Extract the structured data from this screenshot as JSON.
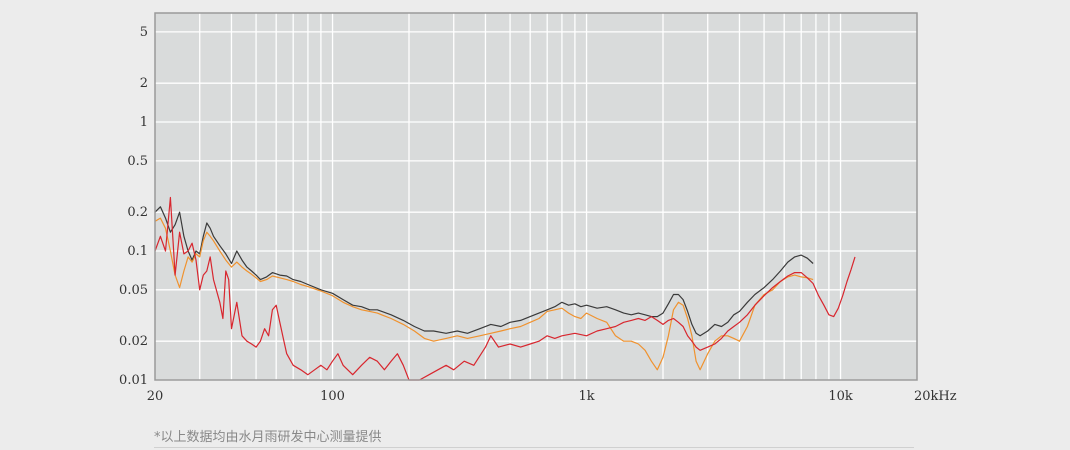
{
  "chart_data": {
    "type": "line",
    "title": "",
    "xlabel": "",
    "ylabel": "",
    "x_scale": "log",
    "y_scale": "log",
    "xlim": [
      20,
      20000
    ],
    "ylim": [
      0.01,
      7
    ],
    "grid": true,
    "x_ticks": [
      {
        "value": 20,
        "label": "20"
      },
      {
        "value": 100,
        "label": "100"
      },
      {
        "value": 1000,
        "label": "1k"
      },
      {
        "value": 10000,
        "label": "10k"
      },
      {
        "value": 20000,
        "label": "20kHz"
      }
    ],
    "y_ticks": [
      {
        "value": 5,
        "label": "5"
      },
      {
        "value": 2,
        "label": "2"
      },
      {
        "value": 1,
        "label": "1"
      },
      {
        "value": 0.5,
        "label": "0.5"
      },
      {
        "value": 0.2,
        "label": "0.2"
      },
      {
        "value": 0.1,
        "label": "0.1"
      },
      {
        "value": 0.05,
        "label": "0.05"
      },
      {
        "value": 0.02,
        "label": "0.02"
      },
      {
        "value": 0.01,
        "label": "0.01"
      }
    ],
    "series": [
      {
        "color": "#3a3a3a",
        "points": [
          [
            20,
            0.2
          ],
          [
            21,
            0.22
          ],
          [
            22,
            0.18
          ],
          [
            23,
            0.14
          ],
          [
            24,
            0.16
          ],
          [
            25,
            0.2
          ],
          [
            26,
            0.13
          ],
          [
            27,
            0.1
          ],
          [
            28,
            0.085
          ],
          [
            29,
            0.1
          ],
          [
            30,
            0.095
          ],
          [
            31,
            0.13
          ],
          [
            32,
            0.165
          ],
          [
            33,
            0.15
          ],
          [
            34,
            0.13
          ],
          [
            36,
            0.11
          ],
          [
            38,
            0.095
          ],
          [
            40,
            0.08
          ],
          [
            42,
            0.1
          ],
          [
            44,
            0.085
          ],
          [
            46,
            0.075
          ],
          [
            48,
            0.07
          ],
          [
            50,
            0.065
          ],
          [
            52,
            0.06
          ],
          [
            55,
            0.063
          ],
          [
            58,
            0.068
          ],
          [
            62,
            0.065
          ],
          [
            66,
            0.064
          ],
          [
            70,
            0.06
          ],
          [
            75,
            0.058
          ],
          [
            80,
            0.055
          ],
          [
            90,
            0.05
          ],
          [
            100,
            0.047
          ],
          [
            110,
            0.042
          ],
          [
            120,
            0.038
          ],
          [
            130,
            0.037
          ],
          [
            140,
            0.035
          ],
          [
            150,
            0.035
          ],
          [
            170,
            0.032
          ],
          [
            190,
            0.029
          ],
          [
            210,
            0.026
          ],
          [
            230,
            0.024
          ],
          [
            250,
            0.024
          ],
          [
            280,
            0.023
          ],
          [
            310,
            0.024
          ],
          [
            340,
            0.023
          ],
          [
            380,
            0.025
          ],
          [
            420,
            0.027
          ],
          [
            460,
            0.026
          ],
          [
            500,
            0.028
          ],
          [
            550,
            0.029
          ],
          [
            600,
            0.031
          ],
          [
            650,
            0.033
          ],
          [
            700,
            0.035
          ],
          [
            750,
            0.037
          ],
          [
            800,
            0.04
          ],
          [
            850,
            0.038
          ],
          [
            900,
            0.039
          ],
          [
            950,
            0.037
          ],
          [
            1000,
            0.038
          ],
          [
            1100,
            0.036
          ],
          [
            1200,
            0.037
          ],
          [
            1300,
            0.035
          ],
          [
            1400,
            0.033
          ],
          [
            1500,
            0.032
          ],
          [
            1600,
            0.033
          ],
          [
            1700,
            0.032
          ],
          [
            1800,
            0.031
          ],
          [
            1900,
            0.031
          ],
          [
            2000,
            0.033
          ],
          [
            2100,
            0.039
          ],
          [
            2200,
            0.046
          ],
          [
            2300,
            0.046
          ],
          [
            2400,
            0.042
          ],
          [
            2500,
            0.034
          ],
          [
            2600,
            0.027
          ],
          [
            2700,
            0.023
          ],
          [
            2800,
            0.022
          ],
          [
            3000,
            0.024
          ],
          [
            3200,
            0.027
          ],
          [
            3400,
            0.026
          ],
          [
            3600,
            0.028
          ],
          [
            3800,
            0.032
          ],
          [
            4000,
            0.034
          ],
          [
            4300,
            0.04
          ],
          [
            4600,
            0.046
          ],
          [
            5000,
            0.052
          ],
          [
            5400,
            0.06
          ],
          [
            5800,
            0.07
          ],
          [
            6200,
            0.082
          ],
          [
            6600,
            0.09
          ],
          [
            7000,
            0.093
          ],
          [
            7400,
            0.088
          ],
          [
            7800,
            0.08
          ]
        ]
      },
      {
        "color": "#f0922e",
        "points": [
          [
            20,
            0.17
          ],
          [
            21,
            0.18
          ],
          [
            22,
            0.15
          ],
          [
            23,
            0.1
          ],
          [
            24,
            0.065
          ],
          [
            25,
            0.052
          ],
          [
            26,
            0.07
          ],
          [
            27,
            0.09
          ],
          [
            28,
            0.082
          ],
          [
            29,
            0.095
          ],
          [
            30,
            0.09
          ],
          [
            31,
            0.12
          ],
          [
            32,
            0.14
          ],
          [
            33,
            0.13
          ],
          [
            34,
            0.12
          ],
          [
            36,
            0.1
          ],
          [
            38,
            0.085
          ],
          [
            40,
            0.075
          ],
          [
            42,
            0.082
          ],
          [
            44,
            0.075
          ],
          [
            46,
            0.07
          ],
          [
            48,
            0.066
          ],
          [
            50,
            0.062
          ],
          [
            52,
            0.058
          ],
          [
            55,
            0.06
          ],
          [
            58,
            0.064
          ],
          [
            62,
            0.062
          ],
          [
            66,
            0.06
          ],
          [
            70,
            0.058
          ],
          [
            75,
            0.055
          ],
          [
            80,
            0.053
          ],
          [
            90,
            0.049
          ],
          [
            100,
            0.045
          ],
          [
            110,
            0.04
          ],
          [
            120,
            0.037
          ],
          [
            130,
            0.035
          ],
          [
            140,
            0.034
          ],
          [
            150,
            0.033
          ],
          [
            170,
            0.03
          ],
          [
            190,
            0.027
          ],
          [
            210,
            0.024
          ],
          [
            230,
            0.021
          ],
          [
            250,
            0.02
          ],
          [
            280,
            0.021
          ],
          [
            310,
            0.022
          ],
          [
            340,
            0.021
          ],
          [
            380,
            0.022
          ],
          [
            420,
            0.023
          ],
          [
            460,
            0.024
          ],
          [
            500,
            0.025
          ],
          [
            550,
            0.026
          ],
          [
            600,
            0.028
          ],
          [
            650,
            0.03
          ],
          [
            700,
            0.034
          ],
          [
            750,
            0.035
          ],
          [
            800,
            0.036
          ],
          [
            850,
            0.033
          ],
          [
            900,
            0.031
          ],
          [
            950,
            0.03
          ],
          [
            1000,
            0.033
          ],
          [
            1100,
            0.03
          ],
          [
            1200,
            0.028
          ],
          [
            1300,
            0.022
          ],
          [
            1400,
            0.02
          ],
          [
            1500,
            0.02
          ],
          [
            1600,
            0.019
          ],
          [
            1700,
            0.017
          ],
          [
            1800,
            0.014
          ],
          [
            1900,
            0.012
          ],
          [
            2000,
            0.015
          ],
          [
            2100,
            0.022
          ],
          [
            2200,
            0.035
          ],
          [
            2300,
            0.04
          ],
          [
            2400,
            0.038
          ],
          [
            2500,
            0.03
          ],
          [
            2600,
            0.022
          ],
          [
            2700,
            0.014
          ],
          [
            2800,
            0.012
          ],
          [
            3000,
            0.016
          ],
          [
            3200,
            0.02
          ],
          [
            3400,
            0.022
          ],
          [
            3600,
            0.022
          ],
          [
            3800,
            0.021
          ],
          [
            4000,
            0.02
          ],
          [
            4300,
            0.026
          ],
          [
            4600,
            0.038
          ],
          [
            5000,
            0.046
          ],
          [
            5400,
            0.05
          ],
          [
            5800,
            0.058
          ],
          [
            6200,
            0.063
          ],
          [
            6600,
            0.065
          ],
          [
            7000,
            0.063
          ],
          [
            7400,
            0.062
          ],
          [
            7800,
            0.06
          ]
        ]
      },
      {
        "color": "#d8262e",
        "points": [
          [
            20,
            0.1
          ],
          [
            21,
            0.13
          ],
          [
            22,
            0.1
          ],
          [
            23,
            0.26
          ],
          [
            24,
            0.065
          ],
          [
            25,
            0.14
          ],
          [
            26,
            0.095
          ],
          [
            27,
            0.1
          ],
          [
            28,
            0.115
          ],
          [
            29,
            0.085
          ],
          [
            30,
            0.05
          ],
          [
            31,
            0.065
          ],
          [
            32,
            0.07
          ],
          [
            33,
            0.09
          ],
          [
            34,
            0.06
          ],
          [
            36,
            0.04
          ],
          [
            37,
            0.03
          ],
          [
            38,
            0.07
          ],
          [
            39,
            0.06
          ],
          [
            40,
            0.025
          ],
          [
            42,
            0.04
          ],
          [
            44,
            0.022
          ],
          [
            46,
            0.02
          ],
          [
            48,
            0.019
          ],
          [
            50,
            0.018
          ],
          [
            52,
            0.02
          ],
          [
            54,
            0.025
          ],
          [
            56,
            0.022
          ],
          [
            58,
            0.035
          ],
          [
            60,
            0.038
          ],
          [
            62,
            0.028
          ],
          [
            64,
            0.021
          ],
          [
            66,
            0.016
          ],
          [
            70,
            0.013
          ],
          [
            75,
            0.012
          ],
          [
            80,
            0.011
          ],
          [
            85,
            0.012
          ],
          [
            90,
            0.013
          ],
          [
            95,
            0.012
          ],
          [
            100,
            0.014
          ],
          [
            105,
            0.016
          ],
          [
            110,
            0.013
          ],
          [
            120,
            0.011
          ],
          [
            130,
            0.013
          ],
          [
            140,
            0.015
          ],
          [
            150,
            0.014
          ],
          [
            160,
            0.012
          ],
          [
            170,
            0.014
          ],
          [
            180,
            0.016
          ],
          [
            190,
            0.013
          ],
          [
            200,
            0.01
          ],
          [
            220,
            0.01
          ],
          [
            240,
            0.011
          ],
          [
            260,
            0.012
          ],
          [
            280,
            0.013
          ],
          [
            300,
            0.012
          ],
          [
            330,
            0.014
          ],
          [
            360,
            0.013
          ],
          [
            400,
            0.018
          ],
          [
            420,
            0.022
          ],
          [
            450,
            0.018
          ],
          [
            500,
            0.019
          ],
          [
            550,
            0.018
          ],
          [
            600,
            0.019
          ],
          [
            650,
            0.02
          ],
          [
            700,
            0.022
          ],
          [
            750,
            0.021
          ],
          [
            800,
            0.022
          ],
          [
            900,
            0.023
          ],
          [
            1000,
            0.022
          ],
          [
            1100,
            0.024
          ],
          [
            1200,
            0.025
          ],
          [
            1300,
            0.026
          ],
          [
            1400,
            0.028
          ],
          [
            1500,
            0.029
          ],
          [
            1600,
            0.03
          ],
          [
            1700,
            0.029
          ],
          [
            1800,
            0.031
          ],
          [
            1900,
            0.029
          ],
          [
            2000,
            0.027
          ],
          [
            2100,
            0.029
          ],
          [
            2200,
            0.03
          ],
          [
            2300,
            0.028
          ],
          [
            2400,
            0.026
          ],
          [
            2500,
            0.022
          ],
          [
            2600,
            0.02
          ],
          [
            2700,
            0.018
          ],
          [
            2800,
            0.017
          ],
          [
            3000,
            0.018
          ],
          [
            3200,
            0.019
          ],
          [
            3400,
            0.021
          ],
          [
            3600,
            0.024
          ],
          [
            3800,
            0.026
          ],
          [
            4000,
            0.028
          ],
          [
            4300,
            0.032
          ],
          [
            4600,
            0.038
          ],
          [
            5000,
            0.045
          ],
          [
            5400,
            0.052
          ],
          [
            5800,
            0.058
          ],
          [
            6200,
            0.064
          ],
          [
            6600,
            0.068
          ],
          [
            7000,
            0.068
          ],
          [
            7400,
            0.062
          ],
          [
            7800,
            0.056
          ],
          [
            8200,
            0.045
          ],
          [
            8600,
            0.038
          ],
          [
            9000,
            0.032
          ],
          [
            9400,
            0.031
          ],
          [
            9800,
            0.036
          ],
          [
            10200,
            0.045
          ],
          [
            10600,
            0.058
          ],
          [
            11000,
            0.072
          ],
          [
            11400,
            0.09
          ]
        ]
      }
    ]
  },
  "colors": {
    "plot_background": "#d9dbdb",
    "grid": "#ffffff",
    "frame": "#9a9a9a"
  },
  "footnote": "*以上数据均由水月雨研发中心测量提供"
}
